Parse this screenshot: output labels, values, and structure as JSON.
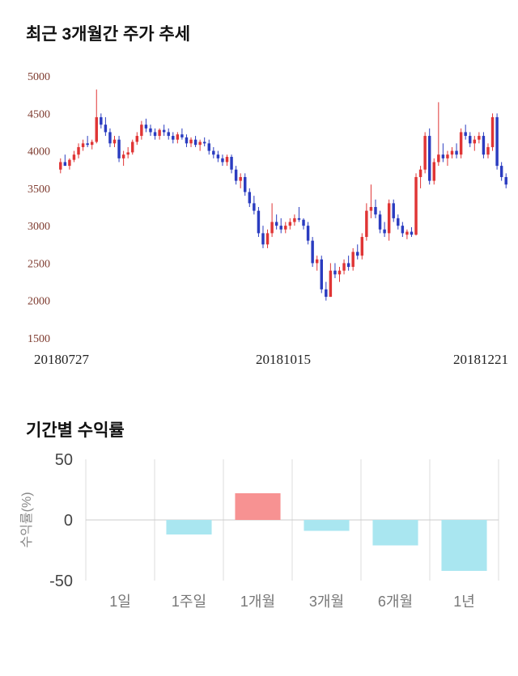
{
  "price_chart": {
    "title": "최근 3개월간 주가 추세"
  },
  "returns_chart": {
    "title": "기간별 수익률",
    "ylabel": "수익률(%)"
  },
  "chart_data": [
    {
      "type": "candlestick",
      "title": "최근 3개월간 주가 추세",
      "ylim": [
        1500,
        5000
      ],
      "yticks": [
        5000,
        4500,
        4000,
        3500,
        3000,
        2500,
        2000,
        1500
      ],
      "xticks": [
        "20180727",
        "20181015",
        "20181221"
      ],
      "up_color": "#e03535",
      "down_color": "#2a3cc0",
      "candles": [
        [
          3750,
          3900,
          3700,
          3850
        ],
        [
          3850,
          3950,
          3800,
          3800
        ],
        [
          3800,
          3900,
          3750,
          3880
        ],
        [
          3880,
          4000,
          3850,
          3950
        ],
        [
          3950,
          4100,
          3900,
          4050
        ],
        [
          4050,
          4150,
          4000,
          4100
        ],
        [
          4100,
          4200,
          4050,
          4080
        ],
        [
          4080,
          4150,
          4020,
          4120
        ],
        [
          4120,
          4820,
          4100,
          4450
        ],
        [
          4450,
          4500,
          4300,
          4350
        ],
        [
          4350,
          4450,
          4200,
          4250
        ],
        [
          4250,
          4300,
          4050,
          4100
        ],
        [
          4100,
          4200,
          4050,
          4150
        ],
        [
          4150,
          4200,
          3850,
          3900
        ],
        [
          3900,
          4000,
          3800,
          3950
        ],
        [
          3950,
          4050,
          3900,
          3980
        ],
        [
          3980,
          4150,
          3950,
          4120
        ],
        [
          4120,
          4250,
          4080,
          4200
        ],
        [
          4200,
          4400,
          4150,
          4350
        ],
        [
          4350,
          4430,
          4250,
          4300
        ],
        [
          4300,
          4350,
          4200,
          4250
        ],
        [
          4250,
          4300,
          4150,
          4200
        ],
        [
          4200,
          4300,
          4150,
          4280
        ],
        [
          4280,
          4350,
          4200,
          4250
        ],
        [
          4250,
          4300,
          4150,
          4200
        ],
        [
          4200,
          4250,
          4100,
          4150
        ],
        [
          4150,
          4250,
          4100,
          4220
        ],
        [
          4220,
          4300,
          4150,
          4180
        ],
        [
          4180,
          4220,
          4050,
          4100
        ],
        [
          4100,
          4180,
          4050,
          4150
        ],
        [
          4150,
          4200,
          4050,
          4080
        ],
        [
          4080,
          4150,
          4000,
          4120
        ],
        [
          4120,
          4180,
          4060,
          4100
        ],
        [
          4100,
          4150,
          3950,
          4000
        ],
        [
          4000,
          4050,
          3900,
          3950
        ],
        [
          3950,
          4000,
          3850,
          3900
        ],
        [
          3900,
          3950,
          3800,
          3850
        ],
        [
          3850,
          3950,
          3800,
          3920
        ],
        [
          3920,
          3950,
          3700,
          3750
        ],
        [
          3750,
          3800,
          3550,
          3600
        ],
        [
          3600,
          3700,
          3500,
          3650
        ],
        [
          3650,
          3700,
          3400,
          3450
        ],
        [
          3450,
          3500,
          3250,
          3300
        ],
        [
          3300,
          3400,
          3150,
          3200
        ],
        [
          3200,
          3250,
          2850,
          2900
        ],
        [
          2900,
          3000,
          2700,
          2750
        ],
        [
          2750,
          2950,
          2700,
          2900
        ],
        [
          2900,
          3300,
          2850,
          3050
        ],
        [
          3050,
          3150,
          2950,
          3000
        ],
        [
          3000,
          3100,
          2900,
          2950
        ],
        [
          2950,
          3050,
          2900,
          3000
        ],
        [
          3000,
          3100,
          2950,
          3050
        ],
        [
          3050,
          3150,
          3000,
          3100
        ],
        [
          3100,
          3250,
          3050,
          3080
        ],
        [
          3080,
          3100,
          2950,
          3000
        ],
        [
          3000,
          3050,
          2750,
          2800
        ],
        [
          2800,
          2850,
          2450,
          2500
        ],
        [
          2500,
          2600,
          2400,
          2550
        ],
        [
          2550,
          2600,
          2100,
          2150
        ],
        [
          2150,
          2250,
          2000,
          2050
        ],
        [
          2050,
          2500,
          2050,
          2400
        ],
        [
          2400,
          2500,
          2300,
          2350
        ],
        [
          2350,
          2450,
          2250,
          2400
        ],
        [
          2400,
          2550,
          2350,
          2500
        ],
        [
          2500,
          2600,
          2400,
          2450
        ],
        [
          2450,
          2700,
          2400,
          2650
        ],
        [
          2650,
          2750,
          2550,
          2600
        ],
        [
          2600,
          2900,
          2550,
          2850
        ],
        [
          2850,
          3300,
          2800,
          3200
        ],
        [
          3200,
          3550,
          3100,
          3250
        ],
        [
          3250,
          3350,
          3100,
          3150
        ],
        [
          3150,
          3200,
          2900,
          2950
        ],
        [
          2950,
          3050,
          2850,
          2900
        ],
        [
          2900,
          3350,
          2800,
          3300
        ],
        [
          3300,
          3350,
          3050,
          3100
        ],
        [
          3100,
          3150,
          2950,
          3000
        ],
        [
          3000,
          3050,
          2850,
          2900
        ],
        [
          2880,
          2950,
          2820,
          2920
        ],
        [
          2920,
          2980,
          2850,
          2880
        ],
        [
          2880,
          3700,
          2870,
          3650
        ],
        [
          3650,
          3800,
          3500,
          3750
        ],
        [
          3750,
          4250,
          3700,
          4200
        ],
        [
          4200,
          4300,
          3550,
          3600
        ],
        [
          3600,
          3900,
          3550,
          3850
        ],
        [
          3850,
          4650,
          3800,
          3950
        ],
        [
          3950,
          4100,
          3850,
          3900
        ],
        [
          3900,
          4000,
          3800,
          3950
        ],
        [
          3950,
          4050,
          3900,
          4000
        ],
        [
          4000,
          4100,
          3900,
          3950
        ],
        [
          3950,
          4300,
          3900,
          4250
        ],
        [
          4250,
          4350,
          4150,
          4200
        ],
        [
          4200,
          4250,
          4050,
          4100
        ],
        [
          4100,
          4200,
          4000,
          4150
        ],
        [
          4150,
          4250,
          4100,
          4200
        ],
        [
          4200,
          4250,
          3900,
          3950
        ],
        [
          3950,
          4100,
          3900,
          4050
        ],
        [
          4050,
          4500,
          4000,
          4450
        ],
        [
          4450,
          4500,
          3750,
          3800
        ],
        [
          3800,
          3850,
          3600,
          3650
        ],
        [
          3650,
          3700,
          3500,
          3550
        ]
      ]
    },
    {
      "type": "bar",
      "title": "기간별 수익률",
      "ylabel": "수익률(%)",
      "categories": [
        "1일",
        "1주일",
        "1개월",
        "3개월",
        "6개월",
        "1년"
      ],
      "values": [
        0,
        -12,
        22,
        -9,
        -21,
        -42
      ],
      "ylim": [
        -50,
        50
      ],
      "yticks": [
        50,
        0,
        -50
      ],
      "positive_color": "#f79292",
      "negative_color": "#a9e6f0",
      "grid_color": "#dcdcdc",
      "zero_line_color": "#cccccc",
      "legend": "none",
      "grid": "vertical"
    }
  ]
}
